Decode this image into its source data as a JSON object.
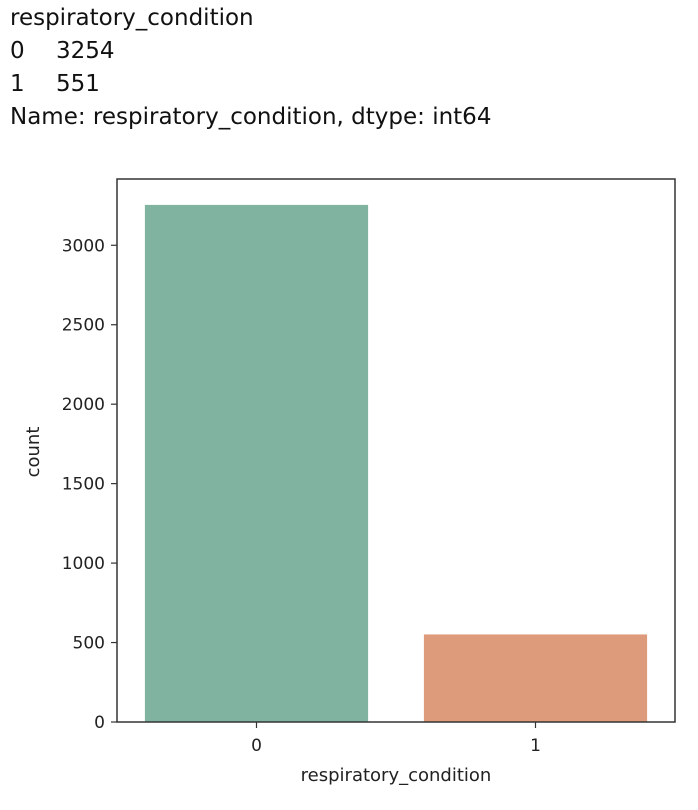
{
  "output": {
    "series_name": "respiratory_condition",
    "rows": [
      {
        "index": "0",
        "value": "3254"
      },
      {
        "index": "1",
        "value": "551"
      }
    ],
    "footer": "Name: respiratory_condition, dtype: int64"
  },
  "chart_data": {
    "type": "bar",
    "categories": [
      "0",
      "1"
    ],
    "values": [
      3254,
      551
    ],
    "colors": [
      "#80b4a1",
      "#de9b7c"
    ],
    "xlabel": "respiratory_condition",
    "ylabel": "count",
    "ylim": [
      0,
      3417
    ],
    "yticks": [
      0,
      500,
      1000,
      1500,
      2000,
      2500,
      3000
    ],
    "grid": false
  }
}
